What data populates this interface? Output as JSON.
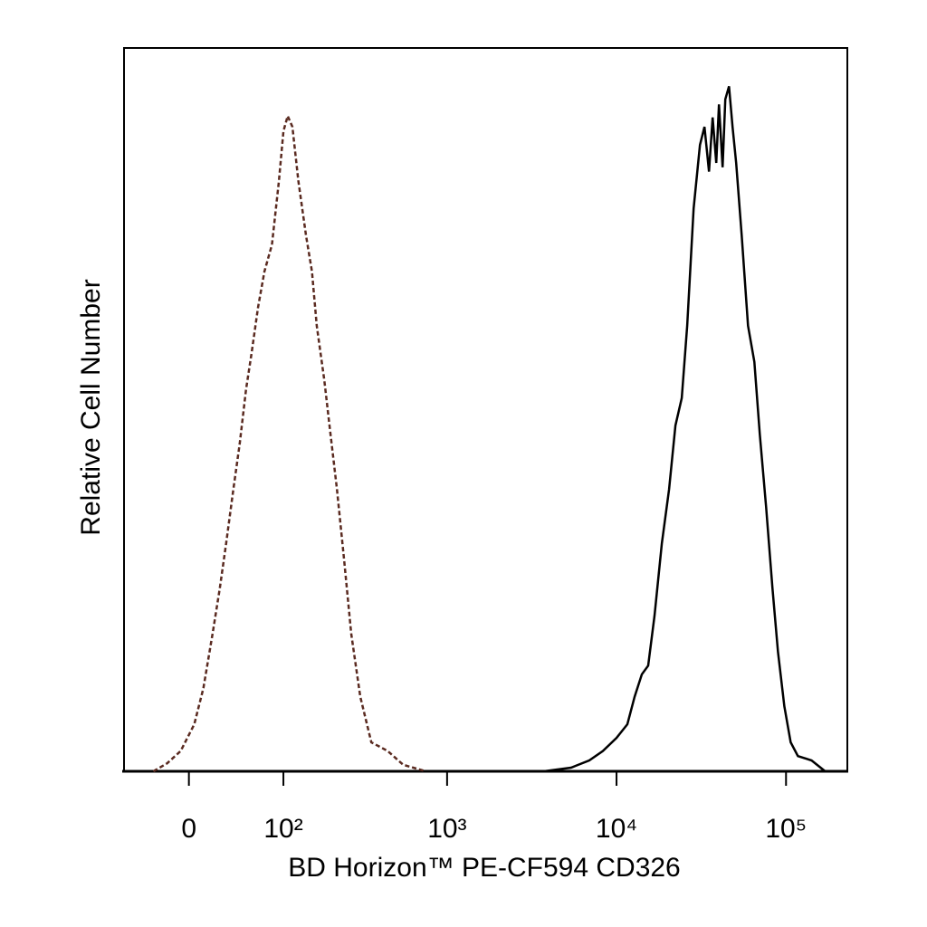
{
  "chart_data": {
    "type": "histogram-line",
    "xlabel": "BD Horizon™ PE-CF594 CD326",
    "ylabel": "Relative Cell Number",
    "xscale": "biexponential",
    "xlim": [
      -60,
      230000
    ],
    "xticks": [
      0,
      {
        "value": 100,
        "label": "10²"
      },
      {
        "value": 1000,
        "label": "10³"
      },
      {
        "value": 10000,
        "label": "10⁴"
      },
      {
        "value": 100000,
        "label": "10⁵"
      }
    ],
    "ylim": [
      0,
      100
    ],
    "series": [
      {
        "color": "#5a2a20",
        "dash": true,
        "x": [
          -30,
          -18,
          -6.7,
          4.4,
          11.9,
          19.6,
          25.9,
          31.7,
          38.5,
          44.8,
          51.4,
          57.5,
          65,
          73,
          83,
          93,
          100,
          107,
          115,
          126,
          141,
          154,
          165,
          184,
          201,
          220,
          244,
          269,
          305,
          355,
          445,
          550,
          748
        ],
        "values": [
          0,
          1.1,
          2.8,
          6.5,
          11.5,
          19,
          25.3,
          31.5,
          39,
          45.3,
          52.8,
          57.8,
          64.1,
          69.1,
          72.8,
          81.6,
          88.5,
          90.6,
          89.1,
          81.6,
          74.1,
          69.1,
          61.6,
          54.1,
          46.6,
          39,
          29,
          19,
          10.3,
          4,
          2.8,
          0.9,
          0
        ]
      },
      {
        "color": "#000000",
        "dash": false,
        "x": [
          3720,
          5390,
          6900,
          8300,
          9990,
          11580,
          12780,
          14100,
          15380,
          16760,
          18500,
          20420,
          22260,
          24260,
          26130,
          28490,
          31050,
          33030,
          35130,
          36900,
          38760,
          40230,
          42240,
          43830,
          46080,
          48390,
          50820,
          54750,
          59700,
          65040,
          70050,
          76350,
          83190,
          89610,
          97710,
          106500,
          117540,
          141420,
          170160
        ],
        "values": [
          0,
          0.5,
          1.5,
          2.8,
          4.6,
          6.5,
          10.3,
          13.4,
          14.6,
          21.5,
          31.5,
          39,
          47.8,
          51.6,
          61.6,
          77.8,
          86.6,
          89.1,
          82.9,
          90.4,
          84.1,
          92.2,
          83.5,
          92.9,
          94.7,
          89.1,
          84.1,
          74.1,
          61.6,
          56.6,
          46.6,
          36.5,
          25.3,
          16.5,
          9,
          4,
          2.1,
          1.5,
          0
        ]
      }
    ]
  }
}
